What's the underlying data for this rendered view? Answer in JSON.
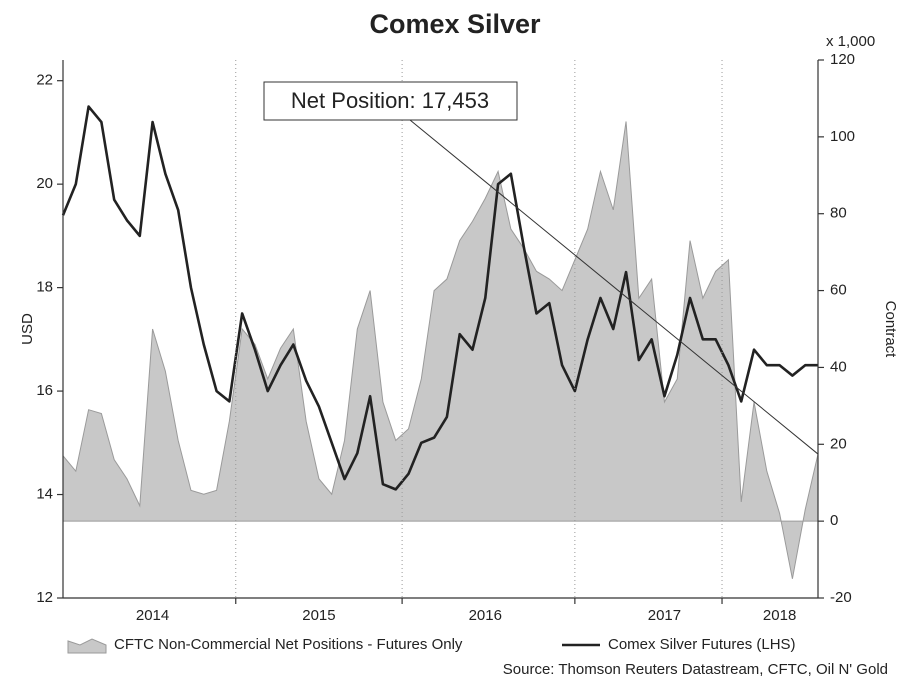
{
  "chart_data": {
    "type": "line",
    "title": "Comex Silver",
    "ylabel": "USD",
    "y2label": "Contract",
    "y2unit": "x 1,000",
    "source": "Source: Thomson Reuters Datastream, CFTC, Oil N' Gold",
    "annotation": "Net Position: 17,453",
    "categories": [
      null,
      null,
      null,
      null,
      null,
      null,
      null,
      "2014",
      null,
      null,
      null,
      null,
      null,
      null,
      null,
      null,
      null,
      null,
      null,
      null,
      "2015",
      null,
      null,
      null,
      null,
      null,
      null,
      null,
      null,
      null,
      null,
      null,
      null,
      "2016",
      null,
      null,
      null,
      null,
      null,
      null,
      null,
      null,
      null,
      null,
      null,
      null,
      null,
      "2017",
      null,
      null,
      null,
      null,
      null,
      null,
      null,
      null,
      "2018",
      null,
      null,
      null
    ],
    "ylim": [
      12,
      22.4
    ],
    "yticks": [
      12,
      14,
      16,
      18,
      20,
      22
    ],
    "y2lim": [
      -20,
      120
    ],
    "y2ticks": [
      -20,
      0,
      20,
      40,
      60,
      80,
      100,
      120
    ],
    "series": [
      {
        "name": "CFTC Non-Commercial Net Positions - Futures Only",
        "type": "area",
        "axis": "y2",
        "color": "#c8c8c8",
        "values": [
          17,
          13,
          29,
          28,
          16,
          11,
          4,
          50,
          39,
          21,
          8,
          7,
          8,
          26,
          50,
          46,
          37,
          45,
          50,
          26,
          11,
          7,
          21,
          50,
          60,
          31,
          21,
          24,
          37,
          60,
          63,
          73,
          78,
          84,
          91,
          76,
          71,
          65,
          63,
          60,
          68,
          76,
          91,
          81,
          104,
          58,
          63,
          31,
          37,
          73,
          58,
          65,
          68,
          5,
          31,
          13,
          2,
          -15,
          3,
          17.453
        ]
      },
      {
        "name": "Comex Silver Futures (LHS)",
        "type": "line",
        "axis": "y",
        "color": "#222222",
        "values": [
          19.4,
          20.0,
          21.5,
          21.2,
          19.7,
          19.3,
          19.0,
          21.2,
          20.2,
          19.5,
          18.0,
          16.9,
          16.0,
          15.8,
          17.5,
          16.8,
          16.0,
          16.5,
          16.9,
          16.2,
          15.7,
          15.0,
          14.3,
          14.8,
          15.9,
          14.2,
          14.1,
          14.4,
          15.0,
          15.1,
          15.5,
          17.1,
          16.8,
          17.8,
          20.0,
          20.2,
          18.8,
          17.5,
          17.7,
          16.5,
          16.0,
          17.0,
          17.8,
          17.2,
          18.3,
          16.6,
          17.0,
          15.9,
          16.7,
          17.8,
          17.0,
          17.0,
          16.5,
          15.8,
          16.8,
          16.5,
          16.5,
          16.3,
          16.5,
          16.5
        ]
      }
    ]
  }
}
